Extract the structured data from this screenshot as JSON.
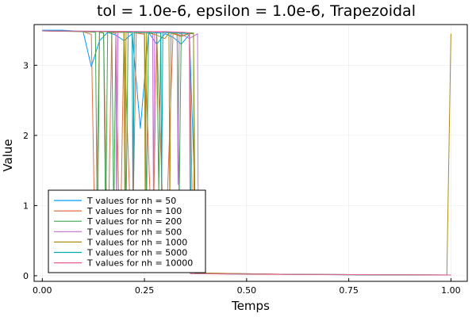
{
  "chart_data": {
    "type": "line",
    "title": "tol = 1.0e-6, epsilon = 1.0e-6, Trapezoidal",
    "xlabel": "Temps",
    "ylabel": "Value",
    "xlim": [
      -0.02,
      1.04
    ],
    "ylim": [
      -0.08,
      3.58
    ],
    "xticks": [
      0.0,
      0.25,
      0.5,
      0.75,
      1.0
    ],
    "xtick_labels": [
      "0.00",
      "0.25",
      "0.50",
      "0.75",
      "1.00"
    ],
    "yticks": [
      0,
      1,
      2,
      3
    ],
    "ytick_labels": [
      "0",
      "1",
      "2",
      "3"
    ],
    "grid": true,
    "legend_position": "bottom-left",
    "series": [
      {
        "name": "T values for nh = 50",
        "color": "#009AFA",
        "x": [
          0.0,
          0.05,
          0.1,
          0.12,
          0.14,
          0.16,
          0.18,
          0.2,
          0.22,
          0.24,
          0.26,
          0.28,
          0.3,
          0.32,
          0.34,
          0.36,
          0.38,
          0.4,
          0.6,
          0.8,
          1.0
        ],
        "y": [
          3.5,
          3.5,
          3.48,
          2.98,
          3.35,
          3.47,
          3.43,
          3.35,
          3.45,
          2.1,
          3.47,
          3.3,
          3.45,
          3.4,
          3.3,
          3.44,
          0.05,
          0.03,
          0.02,
          0.01,
          0.01
        ]
      },
      {
        "name": "T values for nh = 100",
        "color": "#E36F47",
        "x": [
          0.0,
          0.1,
          0.12,
          0.13,
          0.14,
          0.15,
          0.16,
          0.17,
          0.18,
          0.19,
          0.2,
          0.22,
          0.23,
          0.25,
          0.27,
          0.28,
          0.3,
          0.32,
          0.34,
          0.36,
          0.37,
          0.38,
          0.5,
          0.75,
          1.0
        ],
        "y": [
          3.49,
          3.48,
          3.44,
          0.1,
          3.47,
          3.46,
          0.1,
          3.47,
          3.45,
          0.1,
          3.47,
          0.1,
          3.46,
          3.44,
          0.1,
          3.45,
          0.1,
          3.46,
          3.42,
          3.45,
          0.06,
          0.03,
          0.02,
          0.015,
          0.01
        ]
      },
      {
        "name": "T values for nh = 200",
        "color": "#3EA44E",
        "x": [
          0.0,
          0.1,
          0.13,
          0.135,
          0.14,
          0.15,
          0.155,
          0.16,
          0.17,
          0.175,
          0.18,
          0.2,
          0.205,
          0.21,
          0.25,
          0.255,
          0.26,
          0.28,
          0.285,
          0.29,
          0.33,
          0.335,
          0.34,
          0.37,
          0.375,
          0.6,
          1.0
        ],
        "y": [
          3.49,
          3.48,
          3.47,
          0.5,
          3.47,
          3.46,
          0.7,
          3.47,
          3.46,
          0.8,
          3.47,
          3.47,
          0.9,
          3.47,
          3.46,
          1.0,
          3.47,
          3.46,
          1.2,
          3.47,
          3.46,
          1.1,
          3.47,
          3.46,
          0.04,
          0.02,
          0.01
        ]
      },
      {
        "name": "T values for nh = 500",
        "color": "#C271D2",
        "x": [
          0.0,
          0.15,
          0.18,
          0.182,
          0.185,
          0.22,
          0.222,
          0.225,
          0.27,
          0.272,
          0.275,
          0.33,
          0.332,
          0.335,
          0.36,
          0.38,
          0.382,
          0.6,
          1.0
        ],
        "y": [
          3.49,
          3.48,
          3.47,
          0.7,
          3.47,
          3.47,
          0.9,
          3.47,
          3.46,
          1.1,
          3.47,
          3.46,
          1.3,
          3.46,
          3.38,
          3.45,
          0.03,
          0.02,
          0.01
        ]
      },
      {
        "name": "T values for nh = 1000",
        "color": "#AC8D18",
        "x": [
          0.0,
          0.15,
          0.2,
          0.202,
          0.205,
          0.25,
          0.252,
          0.255,
          0.28,
          0.3,
          0.31,
          0.312,
          0.315,
          0.34,
          0.36,
          0.37,
          0.372,
          0.6,
          0.99,
          1.0
        ],
        "y": [
          3.49,
          3.48,
          3.47,
          0.8,
          3.47,
          3.46,
          1.0,
          3.47,
          3.43,
          3.38,
          3.46,
          0.9,
          3.46,
          3.41,
          3.45,
          3.45,
          0.04,
          0.02,
          0.01,
          3.45
        ]
      },
      {
        "name": "T values for nh = 5000",
        "color": "#00A9AD",
        "x": [
          0.0,
          0.2,
          0.22,
          0.222,
          0.225,
          0.29,
          0.292,
          0.295,
          0.33,
          0.36,
          0.365,
          0.6,
          1.0
        ],
        "y": [
          3.49,
          3.48,
          3.47,
          1.0,
          3.47,
          3.46,
          1.2,
          3.47,
          3.46,
          3.45,
          0.03,
          0.02,
          0.01
        ]
      },
      {
        "name": "T values for nh = 10000",
        "color": "#ED5D92",
        "x": [
          0.0,
          0.3,
          0.35,
          0.36,
          0.362,
          0.6,
          1.0
        ],
        "y": [
          3.49,
          3.48,
          3.47,
          3.46,
          0.03,
          0.02,
          0.01
        ]
      }
    ]
  }
}
